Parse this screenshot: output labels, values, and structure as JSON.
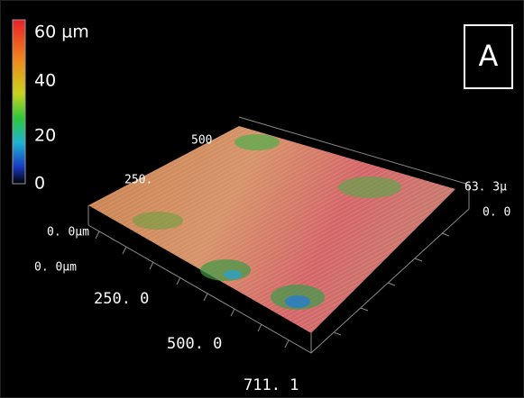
{
  "colorbar": {
    "labels": [
      "60 µm",
      "40",
      "20",
      "0"
    ]
  },
  "panel_label": "A",
  "axis_labels": {
    "back_y": [
      "500",
      "250."
    ],
    "left_z": "0. 0μm",
    "front_x": [
      "0. 0μm",
      "250. 0",
      "500. 0"
    ],
    "front_x_end": "711. 1",
    "right_z": [
      "63. 3μ",
      "0. 0"
    ]
  }
}
